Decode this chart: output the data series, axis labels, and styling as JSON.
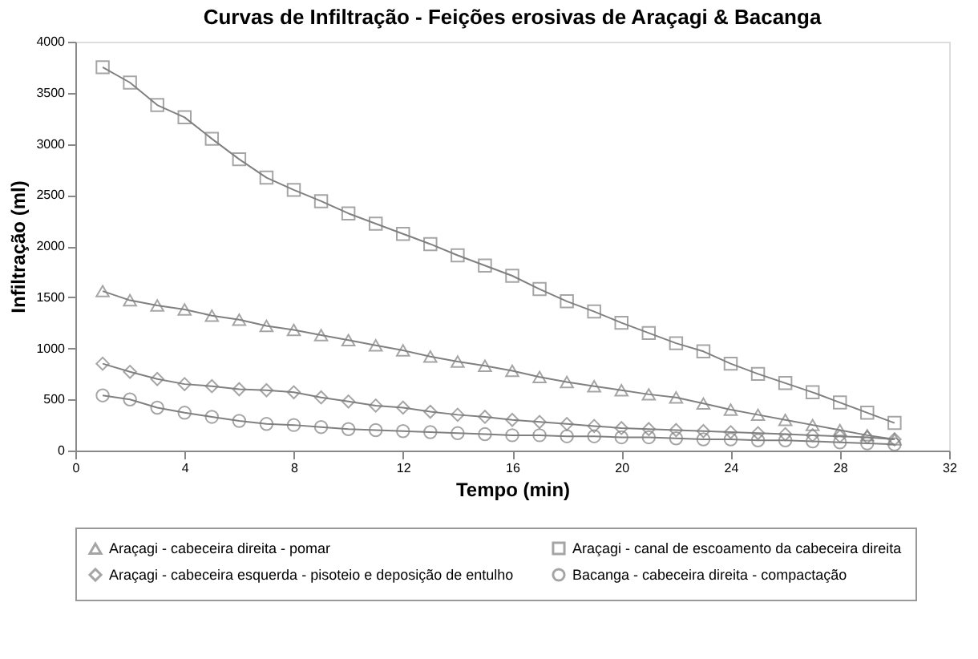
{
  "chart_data": {
    "type": "line",
    "title": "Curvas de Infiltração - Feições erosivas de Araçagi & Bacanga",
    "xlabel": "Tempo (min)",
    "ylabel": "Infiltração (ml)",
    "x": [
      1,
      2,
      3,
      4,
      5,
      6,
      7,
      8,
      9,
      10,
      11,
      12,
      13,
      14,
      15,
      16,
      17,
      18,
      19,
      20,
      21,
      22,
      23,
      24,
      25,
      26,
      27,
      28,
      29,
      30
    ],
    "xlim": [
      0,
      32
    ],
    "xticks": [
      0,
      4,
      8,
      12,
      16,
      20,
      24,
      28,
      32
    ],
    "ylim": [
      0,
      4000
    ],
    "yticks": [
      0,
      500,
      1000,
      1500,
      2000,
      2500,
      3000,
      3500,
      4000
    ],
    "grid": false,
    "legend": "bottom",
    "line_style": "solid",
    "series": [
      {
        "name": "Araçagi - cabeceira direita - pomar",
        "color": "#808080",
        "marker": "triangle",
        "values": [
          1560,
          1470,
          1420,
          1380,
          1320,
          1280,
          1220,
          1180,
          1130,
          1080,
          1030,
          980,
          920,
          870,
          830,
          780,
          720,
          670,
          630,
          590,
          550,
          520,
          460,
          400,
          350,
          300,
          250,
          200,
          150,
          110
        ]
      },
      {
        "name": "Araçagi - canal de escoamento da cabeceira direita",
        "color": "#808080",
        "marker": "square",
        "values": [
          3750,
          3600,
          3380,
          3260,
          3050,
          2850,
          2670,
          2550,
          2440,
          2320,
          2220,
          2120,
          2020,
          1910,
          1810,
          1710,
          1580,
          1460,
          1360,
          1250,
          1150,
          1050,
          970,
          850,
          750,
          660,
          570,
          470,
          370,
          270
        ]
      },
      {
        "name": "Araçagi - cabeceira esquerda - pisoteio e deposição de entulho",
        "color": "#808080",
        "marker": "diamond",
        "values": [
          850,
          770,
          700,
          650,
          630,
          600,
          590,
          570,
          520,
          480,
          440,
          420,
          380,
          350,
          330,
          300,
          280,
          260,
          240,
          220,
          210,
          200,
          190,
          180,
          170,
          160,
          150,
          140,
          130,
          110
        ]
      },
      {
        "name": "Bacanga - cabeceira direita - compactação",
        "color": "#808080",
        "marker": "circle",
        "values": [
          540,
          500,
          420,
          370,
          330,
          290,
          260,
          250,
          230,
          210,
          200,
          190,
          180,
          170,
          160,
          150,
          150,
          140,
          140,
          130,
          130,
          120,
          110,
          110,
          100,
          100,
          90,
          80,
          70,
          60
        ]
      }
    ]
  }
}
